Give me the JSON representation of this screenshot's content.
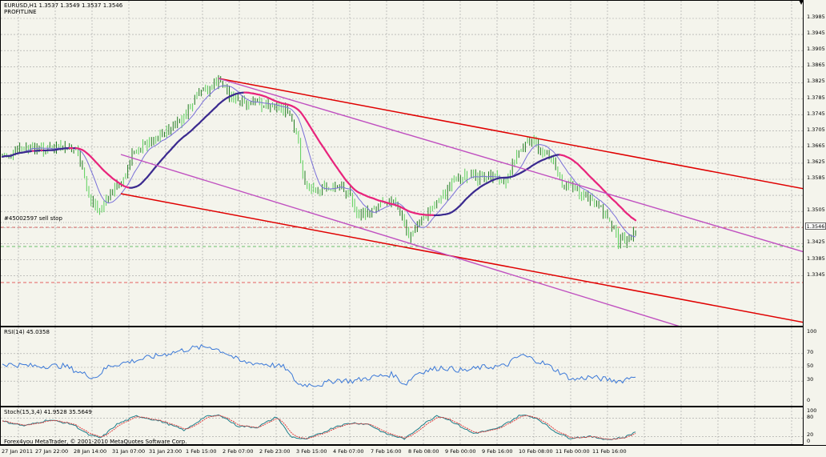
{
  "header": {
    "symbol_line": "EURUSD,H1  1.3537 1.3549 1.3537 1.3546",
    "indicator_name": "PROFITLINE"
  },
  "order_label": "#45002597 sell stop",
  "current_price": "1.3546",
  "rsi": {
    "label": "RSI(14) 45.0358",
    "ticks": [
      "100",
      "70",
      "50",
      "30",
      "0"
    ]
  },
  "stoch": {
    "label": "Stoch(15,3,4) 41.9528 35.5649",
    "ticks": [
      "100",
      "80",
      "20",
      "0"
    ]
  },
  "copyright": "Forex4you MetaTrader, © 2001-2010 MetaQuotes Software Corp.",
  "price_axis": [
    "1.3985",
    "1.3945",
    "1.3905",
    "1.3865",
    "1.3825",
    "1.3785",
    "1.3745",
    "1.3705",
    "1.3665",
    "1.3625",
    "1.3585",
    "1.3546",
    "1.3505",
    "1.3465",
    "1.3425",
    "1.3385",
    "1.3345"
  ],
  "time_axis": [
    "27 Jan 2011",
    "27 Jan 22:00",
    "28 Jan 14:00",
    "31 Jan 07:00",
    "31 Jan 23:00",
    "1 Feb 15:00",
    "2 Feb 07:00",
    "2 Feb 23:00",
    "3 Feb 15:00",
    "4 Feb 07:00",
    "7 Feb 16:00",
    "8 Feb 08:00",
    "9 Feb 00:00",
    "9 Feb 16:00",
    "10 Feb 08:00",
    "11 Feb 00:00",
    "11 Feb 16:00"
  ],
  "colors": {
    "background": "#f4f4ec",
    "grid": "#a0a0a0",
    "candle": "#1f7a1f",
    "candle_alt": "#5ad05a",
    "ma_fast": "#3b2a8f",
    "ma_slow": "#e8247c",
    "channel_red": "#e00000",
    "channel_violet": "#c050c0",
    "rsi_line": "#3a78d8",
    "stoch_main": "#1e7e8a",
    "stoch_signal": "#e04040"
  }
}
